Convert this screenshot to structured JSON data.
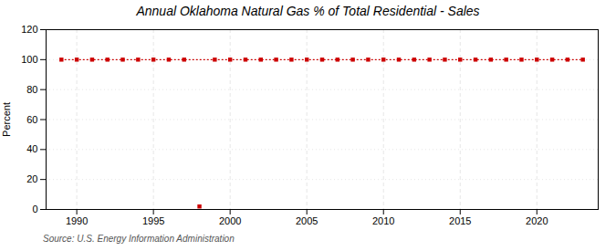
{
  "chart_data": {
    "type": "line",
    "title": "Annual Oklahoma Natural Gas % of Total Residential - Sales",
    "ylabel": "Percent",
    "caption": "Source: U.S. Energy Information Administration",
    "xlim": [
      1988,
      2024
    ],
    "ylim": [
      0,
      120
    ],
    "xticks": [
      1990,
      1995,
      2000,
      2005,
      2010,
      2015,
      2020
    ],
    "yticks": [
      0,
      20,
      40,
      60,
      80,
      100,
      120
    ],
    "grid": true,
    "series": [
      {
        "type": "line",
        "color": "#cc0000",
        "marker": "square",
        "line_style": "dotted",
        "x": [
          1989,
          1990,
          1991,
          1992,
          1993,
          1994,
          1995,
          1996,
          1997,
          1999,
          2000,
          2001,
          2002,
          2003,
          2004,
          2005,
          2006,
          2007,
          2008,
          2009,
          2010,
          2011,
          2012,
          2013,
          2014,
          2015,
          2016,
          2017,
          2018,
          2019,
          2020,
          2021,
          2022,
          2023
        ],
        "values": [
          100,
          100,
          100,
          100,
          100,
          100,
          100,
          100,
          100,
          100,
          100,
          100,
          100,
          100,
          100,
          100,
          100,
          100,
          100,
          100,
          100,
          100,
          100,
          100,
          100,
          100,
          100,
          100,
          100,
          100,
          100,
          100,
          100,
          100
        ]
      },
      {
        "type": "scatter",
        "color": "#cc0000",
        "marker": "square",
        "x": [
          1998
        ],
        "values": [
          2
        ]
      }
    ]
  }
}
